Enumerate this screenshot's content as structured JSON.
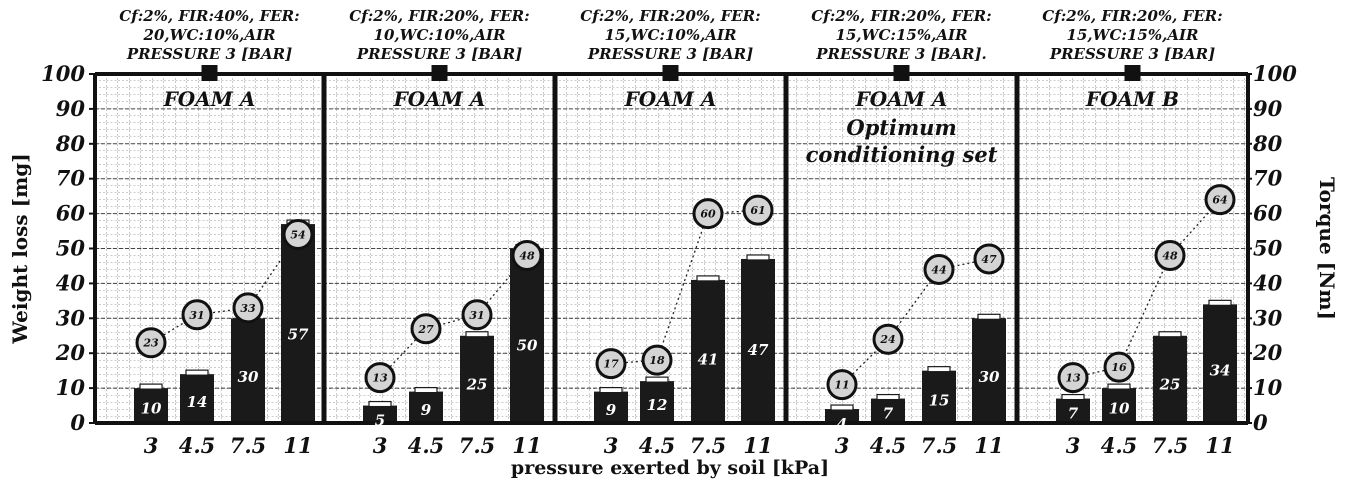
{
  "chart_data": {
    "type": "bar",
    "xlabel": "pressure exerted by soil [kPa]",
    "ylabel": "Weight loss [mg]",
    "y2label": "Torque [Nm]",
    "ylim": [
      0,
      100
    ],
    "y2lim": [
      0,
      100
    ],
    "yticks": [
      "0",
      "10",
      "20",
      "30",
      "40",
      "50",
      "60",
      "70",
      "80",
      "90",
      "100"
    ],
    "grid": true,
    "categories": [
      "3",
      "4.5",
      "7.5",
      "11"
    ],
    "panels": [
      {
        "header": [
          "Cf:2%, FIR:40%, FER:",
          "20,WC:10%,AIR",
          "PRESSURE 3 [BAR]"
        ],
        "foam": "FOAM A",
        "note": [],
        "weight_loss": [
          10,
          14,
          30,
          57
        ],
        "weight_loss_labels": [
          "10",
          "14",
          "30",
          "57"
        ],
        "torque": [
          23,
          31,
          33,
          54
        ],
        "torque_labels": [
          "23",
          "31",
          "33",
          "54"
        ]
      },
      {
        "header": [
          "Cf:2%, FIR:20%, FER:",
          "10,WC:10%,AIR",
          "PRESSURE 3 [BAR]"
        ],
        "foam": "FOAM A",
        "note": [],
        "weight_loss": [
          5,
          9,
          25,
          50
        ],
        "weight_loss_labels": [
          "5",
          "9",
          "25",
          "50"
        ],
        "torque": [
          13,
          27,
          31,
          48
        ],
        "torque_labels": [
          "13",
          "27",
          "31",
          "48"
        ]
      },
      {
        "header": [
          "Cf:2%, FIR:20%, FER:",
          "15,WC:10%,AIR",
          "PRESSURE 3 [BAR]"
        ],
        "foam": "FOAM A",
        "note": [],
        "weight_loss": [
          9,
          12,
          41,
          47
        ],
        "weight_loss_labels": [
          "9",
          "12",
          "41",
          "47"
        ],
        "torque": [
          17,
          18,
          60,
          61
        ],
        "torque_labels": [
          "17",
          "18",
          "60",
          "61"
        ]
      },
      {
        "header": [
          "Cf:2%, FIR:20%, FER:",
          "15,WC:15%,AIR",
          "PRESSURE 3 [BAR]."
        ],
        "foam": "FOAM A",
        "note": [
          "Optimum",
          "conditioning set"
        ],
        "weight_loss": [
          4,
          7,
          15,
          30
        ],
        "weight_loss_labels": [
          "4",
          "7",
          "15",
          "30"
        ],
        "torque": [
          11,
          24,
          44,
          47
        ],
        "torque_labels": [
          "11",
          "24",
          "44",
          "47"
        ]
      },
      {
        "header": [
          "Cf:2%, FIR:20%, FER:",
          "15,WC:15%,AIR",
          "PRESSURE 3 [BAR]"
        ],
        "foam": "FOAM B",
        "note": [],
        "weight_loss": [
          7,
          10,
          25,
          34
        ],
        "weight_loss_labels": [
          "7",
          "10",
          "25",
          "34"
        ],
        "torque": [
          13,
          16,
          48,
          64
        ],
        "torque_labels": [
          "13",
          "16",
          "48",
          "64"
        ]
      }
    ]
  }
}
